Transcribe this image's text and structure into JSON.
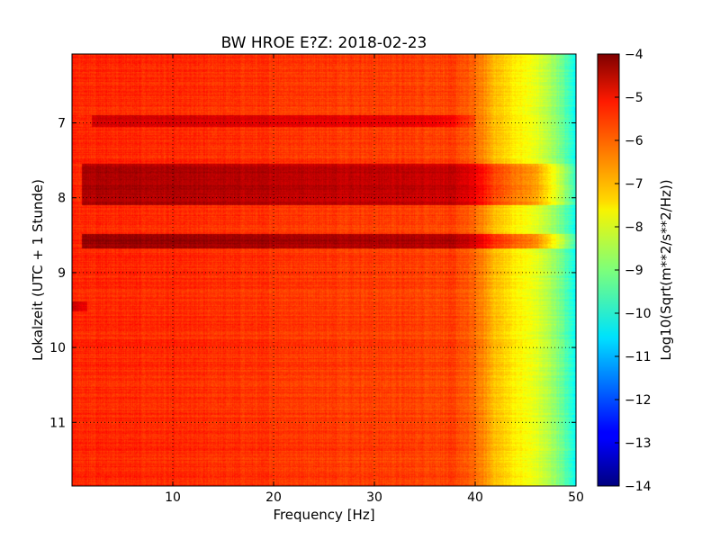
{
  "chart_data": {
    "type": "heatmap",
    "title": "BW HROE E?Z: 2018-02-23",
    "xlabel": "Frequency [Hz]",
    "ylabel": "Lokalzeit (UTC + 1 Stunde)",
    "xlim": [
      0,
      50
    ],
    "ylim": [
      11.85,
      6.08
    ],
    "xticks": [
      10,
      20,
      30,
      40,
      50
    ],
    "xtick_labels": [
      "10",
      "20",
      "30",
      "40",
      "50"
    ],
    "yticks": [
      7,
      8,
      9,
      10,
      11
    ],
    "ytick_labels": [
      "7",
      "8",
      "9",
      "10",
      "11"
    ],
    "grid": true,
    "colorbar": {
      "label": "Log10(Sqrt(m**2/s**2/Hz))",
      "colormap": "jet",
      "vmin": -14,
      "vmax": -4,
      "ticks": [
        -4,
        -5,
        -6,
        -7,
        -8,
        -9,
        -10,
        -11,
        -12,
        -13,
        -14
      ],
      "tick_labels": [
        "−4",
        "−5",
        "−6",
        "−7",
        "−8",
        "−9",
        "−10",
        "−11",
        "−12",
        "−13",
        "−14"
      ]
    },
    "background_level": -5.8,
    "spectral_rolloff": [
      {
        "freq": 0,
        "value": -5.6
      },
      {
        "freq": 38,
        "value": -5.9
      },
      {
        "freq": 40,
        "value": -6.3
      },
      {
        "freq": 42,
        "value": -7.1
      },
      {
        "freq": 44,
        "value": -7.6
      },
      {
        "freq": 46,
        "value": -8.0
      },
      {
        "freq": 48,
        "value": -8.8
      },
      {
        "freq": 49.5,
        "value": -9.8
      },
      {
        "freq": 50,
        "value": -10.3
      }
    ],
    "loud_bands": [
      {
        "time_start": 6.9,
        "time_end": 7.05,
        "freq_start": 2,
        "freq_end": 40,
        "value": -5.0
      },
      {
        "time_start": 7.55,
        "time_end": 8.1,
        "freq_start": 1,
        "freq_end": 50,
        "value": -4.6
      },
      {
        "time_start": 8.48,
        "time_end": 8.68,
        "freq_start": 1,
        "freq_end": 50,
        "value": -4.4
      },
      {
        "time_start": 9.38,
        "time_end": 9.52,
        "freq_start": 0,
        "freq_end": 1.5,
        "value": -4.3
      }
    ]
  }
}
